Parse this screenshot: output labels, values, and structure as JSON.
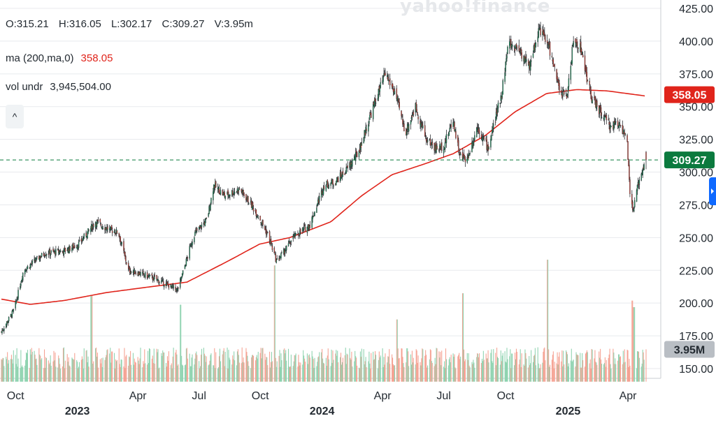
{
  "watermark": "yahoo!finance",
  "legend": {
    "ohlcv": [
      {
        "label": "O:",
        "value": "315.21"
      },
      {
        "label": "H:",
        "value": "316.05"
      },
      {
        "label": "L:",
        "value": "302.17"
      },
      {
        "label": "C:",
        "value": "309.27"
      },
      {
        "label": "V:",
        "value": "3.95m"
      }
    ],
    "ma_label": "ma (200,ma,0)",
    "ma_value": "358.05",
    "vol_label": "vol undr",
    "vol_value": "3,945,504.00"
  },
  "collapse_glyph": "^",
  "colors": {
    "up": "#1e9e63",
    "down": "#e64a3b",
    "vol_up": "#8fd3b0",
    "vol_down": "#f5a293",
    "ma": "#e0241b",
    "grid": "#e8eaed",
    "price_tag": "#0b7a3e",
    "ma_tag": "#e0241b",
    "vol_tag": "#b9bec4",
    "side_tab": "#0f69ff"
  },
  "chart_data": {
    "type": "candlestick",
    "ylim": [
      140,
      425
    ],
    "y_ticks": [
      "425.00",
      "400.00",
      "375.00",
      "350.00",
      "325.00",
      "300.00",
      "275.00",
      "250.00",
      "225.00",
      "200.00",
      "175.00",
      "150.00"
    ],
    "x_ticks": [
      {
        "month": "Oct",
        "year": "",
        "date": "2022-10-03"
      },
      {
        "month": "",
        "year": "2023",
        "date": "2023-01-03"
      },
      {
        "month": "Apr",
        "year": "",
        "date": "2023-04-03"
      },
      {
        "month": "Jul",
        "year": "",
        "date": "2023-07-03"
      },
      {
        "month": "Oct",
        "year": "",
        "date": "2023-10-02"
      },
      {
        "month": "",
        "year": "2024",
        "date": "2024-01-02"
      },
      {
        "month": "Apr",
        "year": "",
        "date": "2024-04-01"
      },
      {
        "month": "Jul",
        "year": "",
        "date": "2024-07-01"
      },
      {
        "month": "Oct",
        "year": "",
        "date": "2024-10-01"
      },
      {
        "month": "",
        "year": "2025",
        "date": "2025-01-02"
      },
      {
        "month": "Apr",
        "year": "",
        "date": "2025-04-01"
      }
    ],
    "date_range": [
      "2022-09-12",
      "2025-04-28"
    ],
    "close_anchors": [
      [
        "2022-09-12",
        178
      ],
      [
        "2022-10-01",
        195
      ],
      [
        "2022-10-15",
        225
      ],
      [
        "2022-11-15",
        238
      ],
      [
        "2022-12-15",
        240
      ],
      [
        "2023-01-05",
        245
      ],
      [
        "2023-01-30",
        262
      ],
      [
        "2023-02-20",
        256
      ],
      [
        "2023-03-05",
        254
      ],
      [
        "2023-03-20",
        225
      ],
      [
        "2023-04-10",
        222
      ],
      [
        "2023-05-01",
        218
      ],
      [
        "2023-06-01",
        210
      ],
      [
        "2023-06-10",
        225
      ],
      [
        "2023-06-25",
        252
      ],
      [
        "2023-07-15",
        264
      ],
      [
        "2023-07-25",
        290
      ],
      [
        "2023-08-10",
        282
      ],
      [
        "2023-09-01",
        287
      ],
      [
        "2023-09-15",
        278
      ],
      [
        "2023-10-01",
        265
      ],
      [
        "2023-10-15",
        250
      ],
      [
        "2023-10-26",
        232
      ],
      [
        "2023-11-05",
        238
      ],
      [
        "2023-11-20",
        250
      ],
      [
        "2023-12-15",
        260
      ],
      [
        "2024-01-05",
        290
      ],
      [
        "2024-01-20",
        292
      ],
      [
        "2024-02-05",
        300
      ],
      [
        "2024-02-25",
        315
      ],
      [
        "2024-03-15",
        345
      ],
      [
        "2024-04-05",
        375
      ],
      [
        "2024-04-20",
        360
      ],
      [
        "2024-05-05",
        330
      ],
      [
        "2024-05-20",
        350
      ],
      [
        "2024-06-05",
        325
      ],
      [
        "2024-06-20",
        318
      ],
      [
        "2024-07-01",
        320
      ],
      [
        "2024-07-15",
        340
      ],
      [
        "2024-07-25",
        312
      ],
      [
        "2024-08-05",
        310
      ],
      [
        "2024-08-20",
        335
      ],
      [
        "2024-09-05",
        318
      ],
      [
        "2024-09-25",
        360
      ],
      [
        "2024-10-05",
        398
      ],
      [
        "2024-10-20",
        395
      ],
      [
        "2024-11-05",
        380
      ],
      [
        "2024-11-20",
        410
      ],
      [
        "2024-12-05",
        395
      ],
      [
        "2024-12-20",
        362
      ],
      [
        "2024-12-31",
        358
      ],
      [
        "2025-01-10",
        400
      ],
      [
        "2025-01-20",
        396
      ],
      [
        "2025-02-05",
        358
      ],
      [
        "2025-02-20",
        345
      ],
      [
        "2025-03-05",
        335
      ],
      [
        "2025-03-20",
        338
      ],
      [
        "2025-03-31",
        322
      ],
      [
        "2025-04-04",
        282
      ],
      [
        "2025-04-09",
        270
      ],
      [
        "2025-04-15",
        288
      ],
      [
        "2025-04-22",
        302
      ],
      [
        "2025-04-28",
        309.27
      ]
    ],
    "ma_anchors": [
      [
        "2022-09-12",
        203
      ],
      [
        "2022-10-25",
        199
      ],
      [
        "2022-12-15",
        202
      ],
      [
        "2023-02-15",
        208
      ],
      [
        "2023-04-15",
        212
      ],
      [
        "2023-06-15",
        216
      ],
      [
        "2023-08-15",
        232
      ],
      [
        "2023-10-01",
        245
      ],
      [
        "2023-11-15",
        250
      ],
      [
        "2024-01-15",
        262
      ],
      [
        "2024-03-01",
        282
      ],
      [
        "2024-04-15",
        298
      ],
      [
        "2024-06-01",
        306
      ],
      [
        "2024-07-15",
        314
      ],
      [
        "2024-09-01",
        328
      ],
      [
        "2024-10-15",
        346
      ],
      [
        "2024-12-01",
        360
      ],
      [
        "2025-01-15",
        363
      ],
      [
        "2025-03-01",
        362
      ],
      [
        "2025-04-28",
        358.05
      ]
    ],
    "volume_scale": {
      "baseline_price": 140,
      "volume_millions_at_175": 5.6
    },
    "volume_spikes": [
      [
        "2023-01-24",
        10.5
      ],
      [
        "2023-10-23",
        14.2
      ],
      [
        "2024-07-29",
        10.8
      ],
      [
        "2024-12-02",
        14.9
      ],
      [
        "2023-06-05",
        9.4
      ],
      [
        "2024-04-22",
        7.6
      ],
      [
        "2025-04-07",
        9.9
      ],
      [
        "2025-04-10",
        9.1
      ]
    ],
    "last": {
      "close": 309.27,
      "ma": 358.05,
      "volume_millions": 3.95
    }
  },
  "tags": {
    "price": "309.27",
    "ma": "358.05",
    "volume": "3.95M"
  }
}
